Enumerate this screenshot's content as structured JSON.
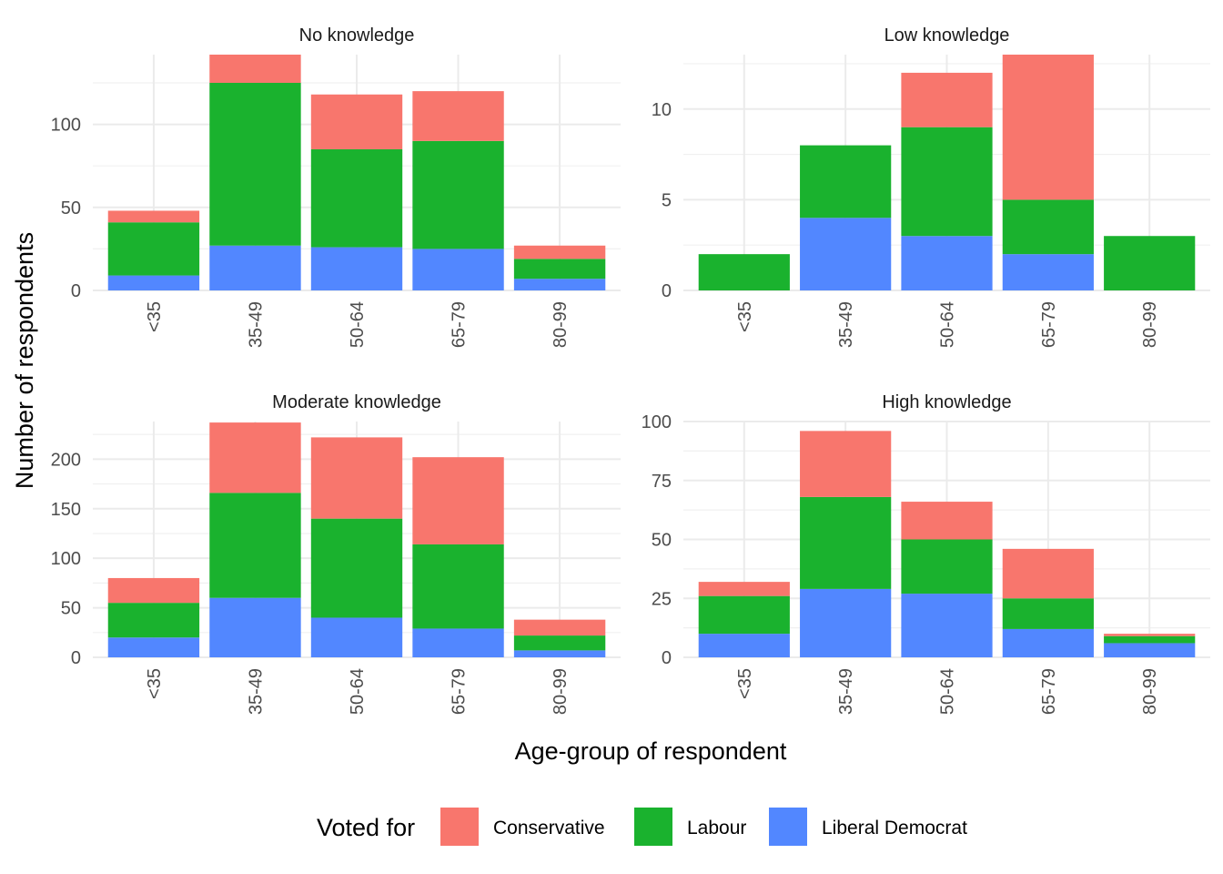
{
  "chart_data": {
    "type": "bar",
    "stacked": true,
    "xlabel": "Age-group of respondent",
    "ylabel": "Number of respondents",
    "categories": [
      "<35",
      "35-49",
      "50-64",
      "65-79",
      "80-99"
    ],
    "legend": {
      "title": "Voted for",
      "placement": "bottom",
      "entries": [
        {
          "name": "Conservative",
          "color": "#F8766D"
        },
        {
          "name": "Labour",
          "color": "#1AB22E"
        },
        {
          "name": "Liberal Democrat",
          "color": "#5287FF"
        }
      ]
    },
    "grid": true,
    "panels": [
      {
        "title": "No knowledge",
        "ylim": [
          0,
          142
        ],
        "yticks": [
          0,
          50,
          100
        ],
        "series": [
          {
            "name": "Liberal Democrat",
            "values": [
              9,
              27,
              26,
              25,
              7
            ]
          },
          {
            "name": "Labour",
            "values": [
              32,
              98,
              59,
              65,
              12
            ]
          },
          {
            "name": "Conservative",
            "values": [
              7,
              17,
              33,
              30,
              8
            ]
          }
        ]
      },
      {
        "title": "Low knowledge",
        "ylim": [
          0,
          13
        ],
        "yticks": [
          0,
          5,
          10
        ],
        "series": [
          {
            "name": "Liberal Democrat",
            "values": [
              0,
              4,
              3,
              2,
              0
            ]
          },
          {
            "name": "Labour",
            "values": [
              2,
              4,
              6,
              3,
              3
            ]
          },
          {
            "name": "Conservative",
            "values": [
              0,
              0,
              3,
              8,
              0
            ]
          }
        ]
      },
      {
        "title": "Moderate knowledge",
        "ylim": [
          0,
          238
        ],
        "yticks": [
          0,
          50,
          100,
          150,
          200
        ],
        "series": [
          {
            "name": "Liberal Democrat",
            "values": [
              20,
              60,
              40,
              29,
              7
            ]
          },
          {
            "name": "Labour",
            "values": [
              35,
              106,
              100,
              85,
              15
            ]
          },
          {
            "name": "Conservative",
            "values": [
              25,
              71,
              82,
              88,
              16
            ]
          }
        ]
      },
      {
        "title": "High knowledge",
        "ylim": [
          0,
          100
        ],
        "yticks": [
          0,
          25,
          50,
          75,
          100
        ],
        "series": [
          {
            "name": "Liberal Democrat",
            "values": [
              10,
              29,
              27,
              12,
              6
            ]
          },
          {
            "name": "Labour",
            "values": [
              16,
              39,
              23,
              13,
              3
            ]
          },
          {
            "name": "Conservative",
            "values": [
              6,
              28,
              16,
              21,
              1
            ]
          }
        ]
      }
    ]
  }
}
